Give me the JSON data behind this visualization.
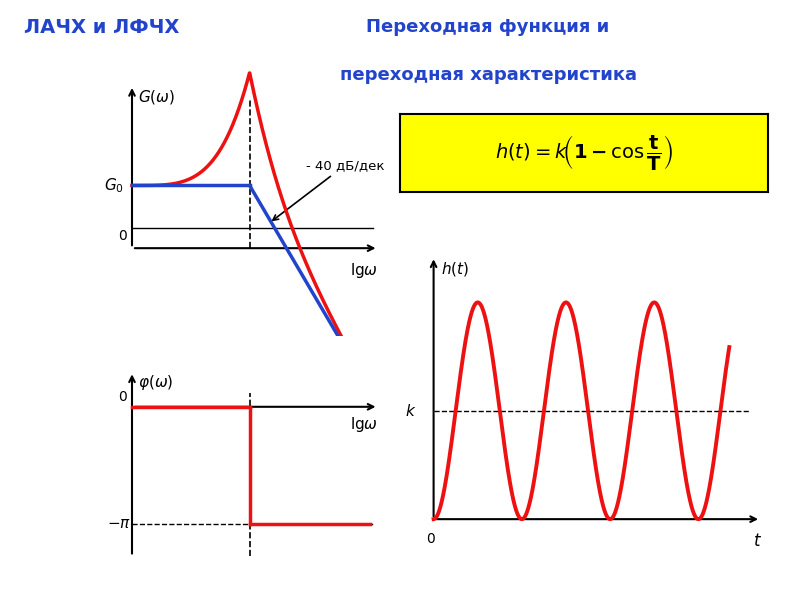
{
  "title_left": "ЛАЧХ и ЛФЧХ",
  "title_right_line1": "Переходная функция и",
  "title_right_line2": "переходная характеристика",
  "annotation_40": "- 40 дБ/дек",
  "title_left_color": "#2244cc",
  "title_right_color": "#2244cc",
  "red_color": "#ee1111",
  "blue_color": "#2244cc",
  "black_color": "#000000",
  "yellow_bg": "#ffff00",
  "bg_color": "#ffffff",
  "lw_curve": 2.5,
  "lw_axis": 1.5
}
